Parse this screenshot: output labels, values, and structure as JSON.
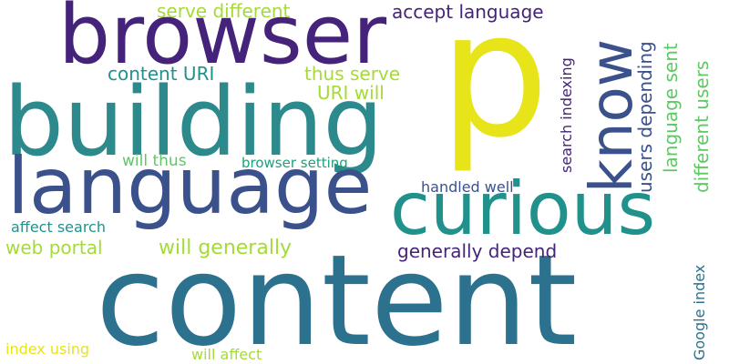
{
  "background": "#ffffff",
  "palette": {
    "dark_purple": "#46237a",
    "indigo": "#3b518b",
    "slate_blue": "#2c728e",
    "teal": "#21918c",
    "green_teal": "#1ca17b",
    "light_green": "#5ec962",
    "yellow_green": "#a5db36",
    "yellow": "#e7e419"
  },
  "words": {
    "content": "content",
    "p": "p",
    "building": "building",
    "browser": "browser",
    "language": "language",
    "curious": "curious",
    "know": "know",
    "serve_different": "serve different",
    "accept_language": "accept language",
    "content_uri": "content URI",
    "thus_serve": "thus serve",
    "uri_will": "URI will",
    "will_thus": "will thus",
    "browser_setting": "browser setting",
    "handled_well": "handled well",
    "affect_search": "affect search",
    "web_portal": "web portal",
    "will_generally": "will generally",
    "generally_depend": "generally depend",
    "index_using": "index using",
    "will_affect": "will affect",
    "search_indexing": "search indexing",
    "users_depending": "users depending",
    "language_sent": "language sent",
    "different_users": "different users",
    "google_index": "Google index"
  }
}
